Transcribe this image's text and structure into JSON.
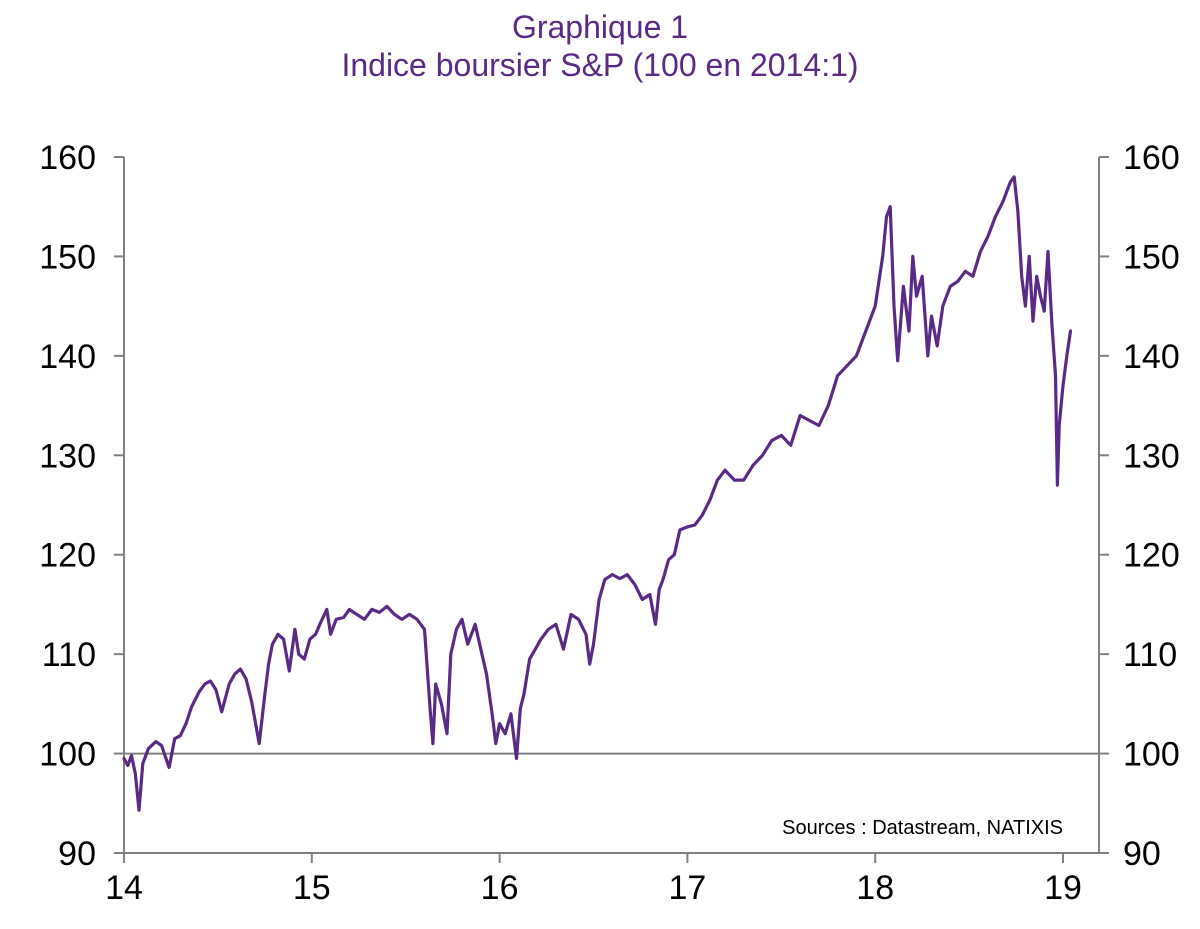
{
  "chart_data": {
    "type": "line",
    "title": "Graphique 1",
    "subtitle": "Indice boursier S&P (100 en 2014:1)",
    "source": "Sources : Datastream, NATIXIS",
    "xlabel": "",
    "ylabel": "",
    "xlim": [
      14,
      19.2
    ],
    "ylim": [
      90,
      160
    ],
    "x_ticks": [
      14,
      15,
      16,
      17,
      18,
      19
    ],
    "x_tick_labels": [
      "14",
      "15",
      "16",
      "17",
      "18",
      "19"
    ],
    "y_ticks": [
      90,
      100,
      110,
      120,
      130,
      140,
      150,
      160
    ],
    "y_tick_labels": [
      "90",
      "100",
      "110",
      "120",
      "130",
      "140",
      "150",
      "160"
    ],
    "reference_line": 100,
    "grid": false,
    "dual_y_axis": true,
    "colors": {
      "line": "#5b2a86",
      "axis": "#808080",
      "title": "#5b2a86"
    },
    "series": [
      {
        "x": [
          14.0,
          14.02,
          14.04,
          14.06,
          14.08,
          14.1,
          14.13,
          14.17,
          14.2,
          14.24,
          14.27,
          14.3,
          14.33,
          14.36,
          14.4,
          14.43,
          14.46,
          14.49,
          14.52,
          14.56,
          14.59,
          14.62,
          14.65,
          14.68,
          14.72,
          14.75,
          14.77,
          14.79,
          14.82,
          14.85,
          14.88,
          14.91,
          14.93,
          14.96,
          14.99,
          15.02,
          15.05,
          15.08,
          15.1,
          15.13,
          15.17,
          15.2,
          15.24,
          15.28,
          15.32,
          15.36,
          15.4,
          15.44,
          15.48,
          15.52,
          15.56,
          15.6,
          15.63,
          15.645,
          15.66,
          15.69,
          15.72,
          15.74,
          15.77,
          15.8,
          15.83,
          15.87,
          15.9,
          15.93,
          15.96,
          15.98,
          16.0,
          16.03,
          16.06,
          16.09,
          16.11,
          16.13,
          16.16,
          16.19,
          16.22,
          16.26,
          16.3,
          16.34,
          16.38,
          16.42,
          16.46,
          16.48,
          16.5,
          16.53,
          16.56,
          16.6,
          16.64,
          16.68,
          16.72,
          16.76,
          16.8,
          16.83,
          16.85,
          16.87,
          16.9,
          16.93,
          16.96,
          17.0,
          17.04,
          17.08,
          17.12,
          17.16,
          17.2,
          17.25,
          17.3,
          17.35,
          17.4,
          17.45,
          17.5,
          17.55,
          17.6,
          17.65,
          17.7,
          17.75,
          17.8,
          17.85,
          17.9,
          17.95,
          18.0,
          18.04,
          18.06,
          18.08,
          18.1,
          18.12,
          18.15,
          18.18,
          18.2,
          18.22,
          18.25,
          18.28,
          18.3,
          18.33,
          18.36,
          18.4,
          18.44,
          18.48,
          18.52,
          18.56,
          18.6,
          18.64,
          18.68,
          18.72,
          18.74,
          18.76,
          18.78,
          18.8,
          18.82,
          18.84,
          18.86,
          18.88,
          18.9,
          18.92,
          18.94,
          18.96,
          18.97,
          18.98,
          19.0,
          19.02,
          19.04
        ],
        "values": [
          99.5,
          98.8,
          99.8,
          98.0,
          94.3,
          99.0,
          100.5,
          101.2,
          100.8,
          98.6,
          101.5,
          101.8,
          103.0,
          104.7,
          106.2,
          107.0,
          107.3,
          106.4,
          104.2,
          107.0,
          108.0,
          108.5,
          107.5,
          105.2,
          101.0,
          106.0,
          109.0,
          111.0,
          112.0,
          111.5,
          108.3,
          112.5,
          110.0,
          109.5,
          111.5,
          112.0,
          113.3,
          114.5,
          112.0,
          113.5,
          113.7,
          114.5,
          114.0,
          113.5,
          114.5,
          114.2,
          114.8,
          114.0,
          113.5,
          114.0,
          113.5,
          112.5,
          104.5,
          101.0,
          107.0,
          105.0,
          102.0,
          110.0,
          112.5,
          113.5,
          111.0,
          113.0,
          110.5,
          108.0,
          104.0,
          101.0,
          103.0,
          102.0,
          104.0,
          99.5,
          104.5,
          106.0,
          109.5,
          110.5,
          111.5,
          112.5,
          113.0,
          110.5,
          114.0,
          113.5,
          112.0,
          109.0,
          111.0,
          115.5,
          117.5,
          118.0,
          117.6,
          118.0,
          117.0,
          115.5,
          116.0,
          113.0,
          116.5,
          117.5,
          119.5,
          120.0,
          122.5,
          122.8,
          123.0,
          124.0,
          125.5,
          127.5,
          128.5,
          127.5,
          127.5,
          129.0,
          130.0,
          131.5,
          132.0,
          131.0,
          134.0,
          133.5,
          133.0,
          135.0,
          138.0,
          139.0,
          140.0,
          142.5,
          145.0,
          150.0,
          154.0,
          155.0,
          145.0,
          139.5,
          147.0,
          142.5,
          150.0,
          146.0,
          148.0,
          140.0,
          144.0,
          141.0,
          145.0,
          147.0,
          147.5,
          148.5,
          148.0,
          150.5,
          152.0,
          154.0,
          155.5,
          157.5,
          158.0,
          154.5,
          148.0,
          145.0,
          150.0,
          143.5,
          148.0,
          146.0,
          144.5,
          150.5,
          143.5,
          138.0,
          127.0,
          133.0,
          137.0,
          140.0,
          142.5
        ]
      }
    ]
  }
}
